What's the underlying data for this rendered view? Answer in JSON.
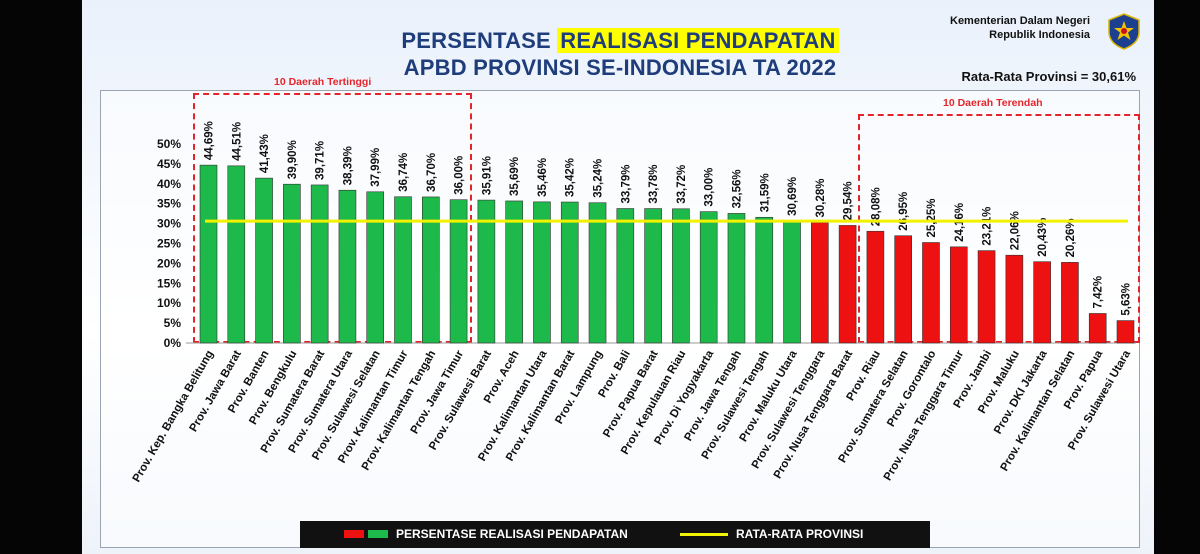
{
  "header": {
    "title_line1_a": "PERSENTASE ",
    "title_line1_b": "REALISASI PENDAPATAN",
    "title_line2": "APBD PROVINSI SE-INDONESIA TA 2022",
    "ministry_line1": "Kementerian Dalam Negeri",
    "ministry_line2": "Republik Indonesia",
    "average_label": "Rata-Rata Provinsi = 30,61%"
  },
  "annotations": {
    "top_box_label": "10 Daerah Tertinggi",
    "bottom_box_label": "10 Daerah Terendah"
  },
  "legend": {
    "bar_label": "PERSENTASE REALISASI PENDAPATAN",
    "line_label": "RATA-RATA PROVINSI"
  },
  "colors": {
    "green": "#1db94b",
    "red": "#ee1111",
    "average_line": "#f2f200",
    "box": "#e3252b"
  },
  "chart_data": {
    "type": "bar",
    "categories": [
      "Prov. Kep. Bangka Belitung",
      "Prov. Jawa Barat",
      "Prov. Banten",
      "Prov. Bengkulu",
      "Prov. Sumatera Barat",
      "Prov. Sumatera Utara",
      "Prov. Sulawesi Selatan",
      "Prov. Kalimantan Timur",
      "Prov. Kalimantan Tengah",
      "Prov. Jawa Timur",
      "Prov. Sulawesi Barat",
      "Prov. Aceh",
      "Prov. Kalimantan Utara",
      "Prov. Kalimantan Barat",
      "Prov. Lampung",
      "Prov. Bali",
      "Prov. Papua Barat",
      "Prov. Kepulauan Riau",
      "Prov. Di Yogyakarta",
      "Prov. Jawa Tengah",
      "Prov. Sulawesi Tengah",
      "Prov. Maluku Utara",
      "Prov. Sulawesi Tenggara",
      "Prov. Nusa Tenggara Barat",
      "Prov. Riau",
      "Prov. Sumatera Selatan",
      "Prov. Gorontalo",
      "Prov. Nusa Tenggara Timur",
      "Prov. Jambi",
      "Prov. Maluku",
      "Prov. DKI Jakarta",
      "Prov. Kalimantan Selatan",
      "Prov. Papua",
      "Prov. Sulawesi Utara"
    ],
    "values": [
      44.69,
      44.51,
      41.43,
      39.9,
      39.71,
      38.39,
      37.99,
      36.74,
      36.7,
      36.0,
      35.91,
      35.69,
      35.46,
      35.42,
      35.24,
      33.79,
      33.78,
      33.72,
      33.0,
      32.56,
      31.59,
      30.69,
      30.28,
      29.54,
      28.08,
      26.95,
      25.25,
      24.16,
      23.21,
      22.06,
      20.43,
      20.26,
      7.42,
      5.63
    ],
    "data_labels": [
      "44,69%",
      "44,51%",
      "41,43%",
      "39,90%",
      "39,71%",
      "38,39%",
      "37,99%",
      "36,74%",
      "36,70%",
      "36,00%",
      "35,91%",
      "35,69%",
      "35,46%",
      "35,42%",
      "35,24%",
      "33,79%",
      "33,78%",
      "33,72%",
      "33,00%",
      "32,56%",
      "31,59%",
      "30,69%",
      "30,28%",
      "29,54%",
      "28,08%",
      "26,95%",
      "25,25%",
      "24,16%",
      "23,21%",
      "22,06%",
      "20,43%",
      "20,26%",
      "7,42%",
      "5,63%"
    ],
    "bar_colors": [
      "green",
      "green",
      "green",
      "green",
      "green",
      "green",
      "green",
      "green",
      "green",
      "green",
      "green",
      "green",
      "green",
      "green",
      "green",
      "green",
      "green",
      "green",
      "green",
      "green",
      "green",
      "green",
      "red",
      "red",
      "red",
      "red",
      "red",
      "red",
      "red",
      "red",
      "red",
      "red",
      "red",
      "red"
    ],
    "average": 30.61,
    "ylim": [
      0,
      50
    ],
    "yticks": [
      0,
      5,
      10,
      15,
      20,
      25,
      30,
      35,
      40,
      45,
      50
    ],
    "ytick_labels": [
      "0%",
      "5%",
      "10%",
      "15%",
      "20%",
      "25%",
      "30%",
      "35%",
      "40%",
      "45%",
      "50%"
    ],
    "grid": false,
    "legend_position": "bottom"
  }
}
